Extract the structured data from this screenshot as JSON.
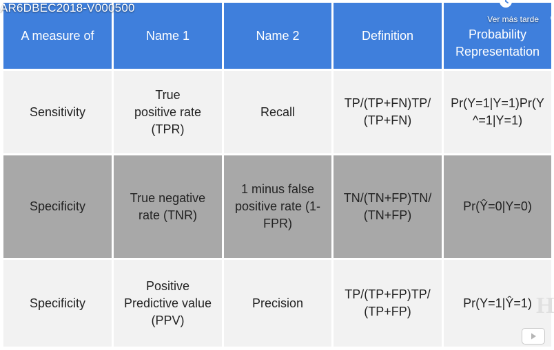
{
  "video": {
    "title": "AR6DBEC2018-V000500",
    "watch_later_label": "Ver más tarde",
    "watermark_text": "H"
  },
  "table": {
    "headers": [
      "A measure of",
      "Name 1",
      "Name 2",
      "Definition",
      "Probability Representation"
    ],
    "rows": [
      [
        "Sensitivity",
        "True positive rate (TPR)",
        "Recall",
        "TP/(TP+FN)TP/(TP+FN)",
        "Pr(Y=1|Y=1)Pr(Y^=1|Y=1)"
      ],
      [
        "Specificity",
        "True negative rate (TNR)",
        "1 minus false positive rate (1-FPR)",
        "TN/(TN+FP)TN/(TN+FP)",
        "Pr(Ŷ=0|Y=0)"
      ],
      [
        "Specificity",
        "Positive Predictive value (PPV)",
        "Precision",
        "TP/(TP+FP)TP/(TP+FP)",
        "Pr(Y=1|Ŷ=1)"
      ]
    ]
  },
  "colors": {
    "header_bg": "#3f7fdc",
    "row_light": "#f2f2f2",
    "row_gray": "#a8a8a8"
  },
  "icons": [
    "clock-icon",
    "play-icon"
  ]
}
